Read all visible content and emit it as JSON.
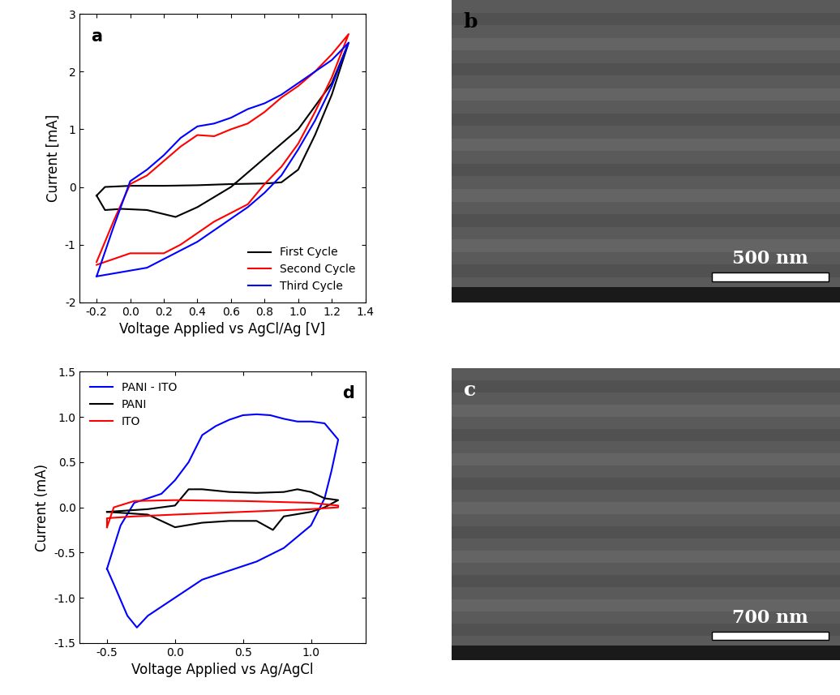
{
  "chart_data": [
    {
      "type": "line",
      "annotations": [
        "a"
      ],
      "x_label": "Voltage Applied vs AgCl/Ag [V]",
      "y_label": "Current [mA]",
      "xlim": [
        -0.3,
        1.4
      ],
      "xticks": [
        -0.2,
        {
          "value": 0.0,
          "label": "0.0"
        },
        0.2,
        0.4,
        0.6,
        0.8,
        {
          "value": 1.0,
          "label": "1.0"
        },
        1.2,
        1.4
      ],
      "ylim": [
        -2,
        3
      ],
      "yticks": [
        -2,
        -1,
        0,
        1,
        2,
        3
      ],
      "legend": "lower right",
      "series": [
        {
          "name": "First Cycle",
          "color": "#000000",
          "x": [
            -0.2,
            -0.15,
            0.0,
            0.2,
            0.4,
            0.6,
            0.8,
            0.9,
            1.0,
            1.1,
            1.2,
            1.3,
            1.2,
            1.0,
            0.8,
            0.6,
            0.4,
            0.27,
            0.1,
            -0.05,
            -0.15,
            -0.2
          ],
          "values": [
            -0.15,
            0.0,
            0.02,
            0.02,
            0.03,
            0.05,
            0.06,
            0.08,
            0.3,
            0.9,
            1.6,
            2.5,
            1.8,
            1.0,
            0.5,
            0.0,
            -0.35,
            -0.52,
            -0.4,
            -0.38,
            -0.4,
            -0.15
          ]
        },
        {
          "name": "Second Cycle",
          "color": "#ff0000",
          "x": [
            -0.2,
            -0.1,
            0.0,
            0.1,
            0.2,
            0.3,
            0.4,
            0.5,
            0.6,
            0.7,
            0.8,
            0.9,
            1.0,
            1.1,
            1.2,
            1.3,
            1.2,
            1.1,
            1.0,
            0.9,
            0.8,
            0.7,
            0.6,
            0.5,
            0.4,
            0.3,
            0.2,
            0.1,
            0.0,
            -0.1,
            -0.2
          ],
          "values": [
            -1.3,
            -0.6,
            0.05,
            0.2,
            0.45,
            0.7,
            0.9,
            0.88,
            1.0,
            1.1,
            1.3,
            1.55,
            1.75,
            2.0,
            2.3,
            2.65,
            1.9,
            1.3,
            0.75,
            0.35,
            0.05,
            -0.3,
            -0.45,
            -0.6,
            -0.8,
            -1.0,
            -1.15,
            -1.15,
            -1.15,
            -1.25,
            -1.35
          ]
        },
        {
          "name": "Third Cycle",
          "color": "#0000ff",
          "x": [
            -0.2,
            -0.1,
            0.0,
            0.1,
            0.2,
            0.3,
            0.4,
            0.5,
            0.6,
            0.7,
            0.8,
            0.9,
            1.0,
            1.1,
            1.2,
            1.3,
            1.2,
            1.1,
            1.0,
            0.9,
            0.8,
            0.7,
            0.6,
            0.5,
            0.4,
            0.3,
            0.2,
            0.1,
            0.0,
            -0.1,
            -0.2
          ],
          "values": [
            -1.55,
            -0.7,
            0.1,
            0.3,
            0.55,
            0.85,
            1.05,
            1.1,
            1.2,
            1.35,
            1.45,
            1.6,
            1.8,
            2.0,
            2.2,
            2.5,
            1.75,
            1.15,
            0.65,
            0.2,
            -0.1,
            -0.35,
            -0.55,
            -0.75,
            -0.95,
            -1.1,
            -1.25,
            -1.4,
            -1.45,
            -1.5,
            -1.55
          ]
        }
      ]
    },
    {
      "type": "line",
      "annotations": [
        "d"
      ],
      "x_label": "Voltage Applied vs Ag/AgCl",
      "y_label": "Current (mA)",
      "xlim": [
        -0.7,
        1.4
      ],
      "xticks": [
        -0.5,
        {
          "value": 0.0,
          "label": "0.0"
        },
        0.5,
        {
          "value": 1.0,
          "label": "1.0"
        }
      ],
      "ylim": [
        -1.5,
        1.5
      ],
      "yticks": [
        -1.5,
        {
          "value": -1.0,
          "label": "-1.0"
        },
        -0.5,
        {
          "value": 0.0,
          "label": "0.0"
        },
        0.5,
        {
          "value": 1.0,
          "label": "1.0"
        },
        1.5
      ],
      "legend": "upper left",
      "series": [
        {
          "name": "PANI - ITO",
          "color": "#0000ff",
          "x": [
            -0.5,
            -0.4,
            -0.3,
            -0.2,
            -0.1,
            0.0,
            0.1,
            0.2,
            0.3,
            0.4,
            0.5,
            0.6,
            0.7,
            0.8,
            0.9,
            1.0,
            1.1,
            1.2,
            1.15,
            1.1,
            1.0,
            0.8,
            0.6,
            0.4,
            0.2,
            0.0,
            -0.1,
            -0.2,
            -0.28,
            -0.35,
            -0.45,
            -0.5
          ],
          "values": [
            -0.68,
            -0.2,
            0.05,
            0.1,
            0.15,
            0.3,
            0.5,
            0.8,
            0.9,
            0.97,
            1.02,
            1.03,
            1.02,
            0.98,
            0.95,
            0.95,
            0.93,
            0.75,
            0.4,
            0.1,
            -0.2,
            -0.45,
            -0.6,
            -0.7,
            -0.8,
            -1.0,
            -1.1,
            -1.2,
            -1.33,
            -1.2,
            -0.85,
            -0.68
          ]
        },
        {
          "name": "PANI",
          "color": "#000000",
          "x": [
            -0.5,
            -0.2,
            0.0,
            0.1,
            0.2,
            0.4,
            0.6,
            0.8,
            0.9,
            1.0,
            1.1,
            1.2,
            1.1,
            1.0,
            0.8,
            0.72,
            0.6,
            0.4,
            0.2,
            0.0,
            -0.2,
            -0.5
          ],
          "values": [
            -0.05,
            -0.02,
            0.02,
            0.2,
            0.2,
            0.17,
            0.16,
            0.17,
            0.2,
            0.17,
            0.1,
            0.08,
            0.0,
            -0.05,
            -0.1,
            -0.25,
            -0.15,
            -0.15,
            -0.17,
            -0.22,
            -0.08,
            -0.05
          ]
        },
        {
          "name": "ITO",
          "color": "#ff0000",
          "x": [
            -0.5,
            -0.45,
            -0.3,
            0.0,
            0.5,
            1.0,
            1.2,
            1.2,
            1.0,
            0.5,
            0.0,
            -0.3,
            -0.5,
            -0.5
          ],
          "values": [
            -0.22,
            0.0,
            0.07,
            0.08,
            0.07,
            0.05,
            0.02,
            0.0,
            -0.02,
            -0.05,
            -0.08,
            -0.1,
            -0.12,
            -0.22
          ]
        }
      ]
    }
  ],
  "images": [
    {
      "label": "b",
      "scale_bar": "500 nm"
    },
    {
      "label": "c",
      "scale_bar": "700 nm"
    }
  ]
}
